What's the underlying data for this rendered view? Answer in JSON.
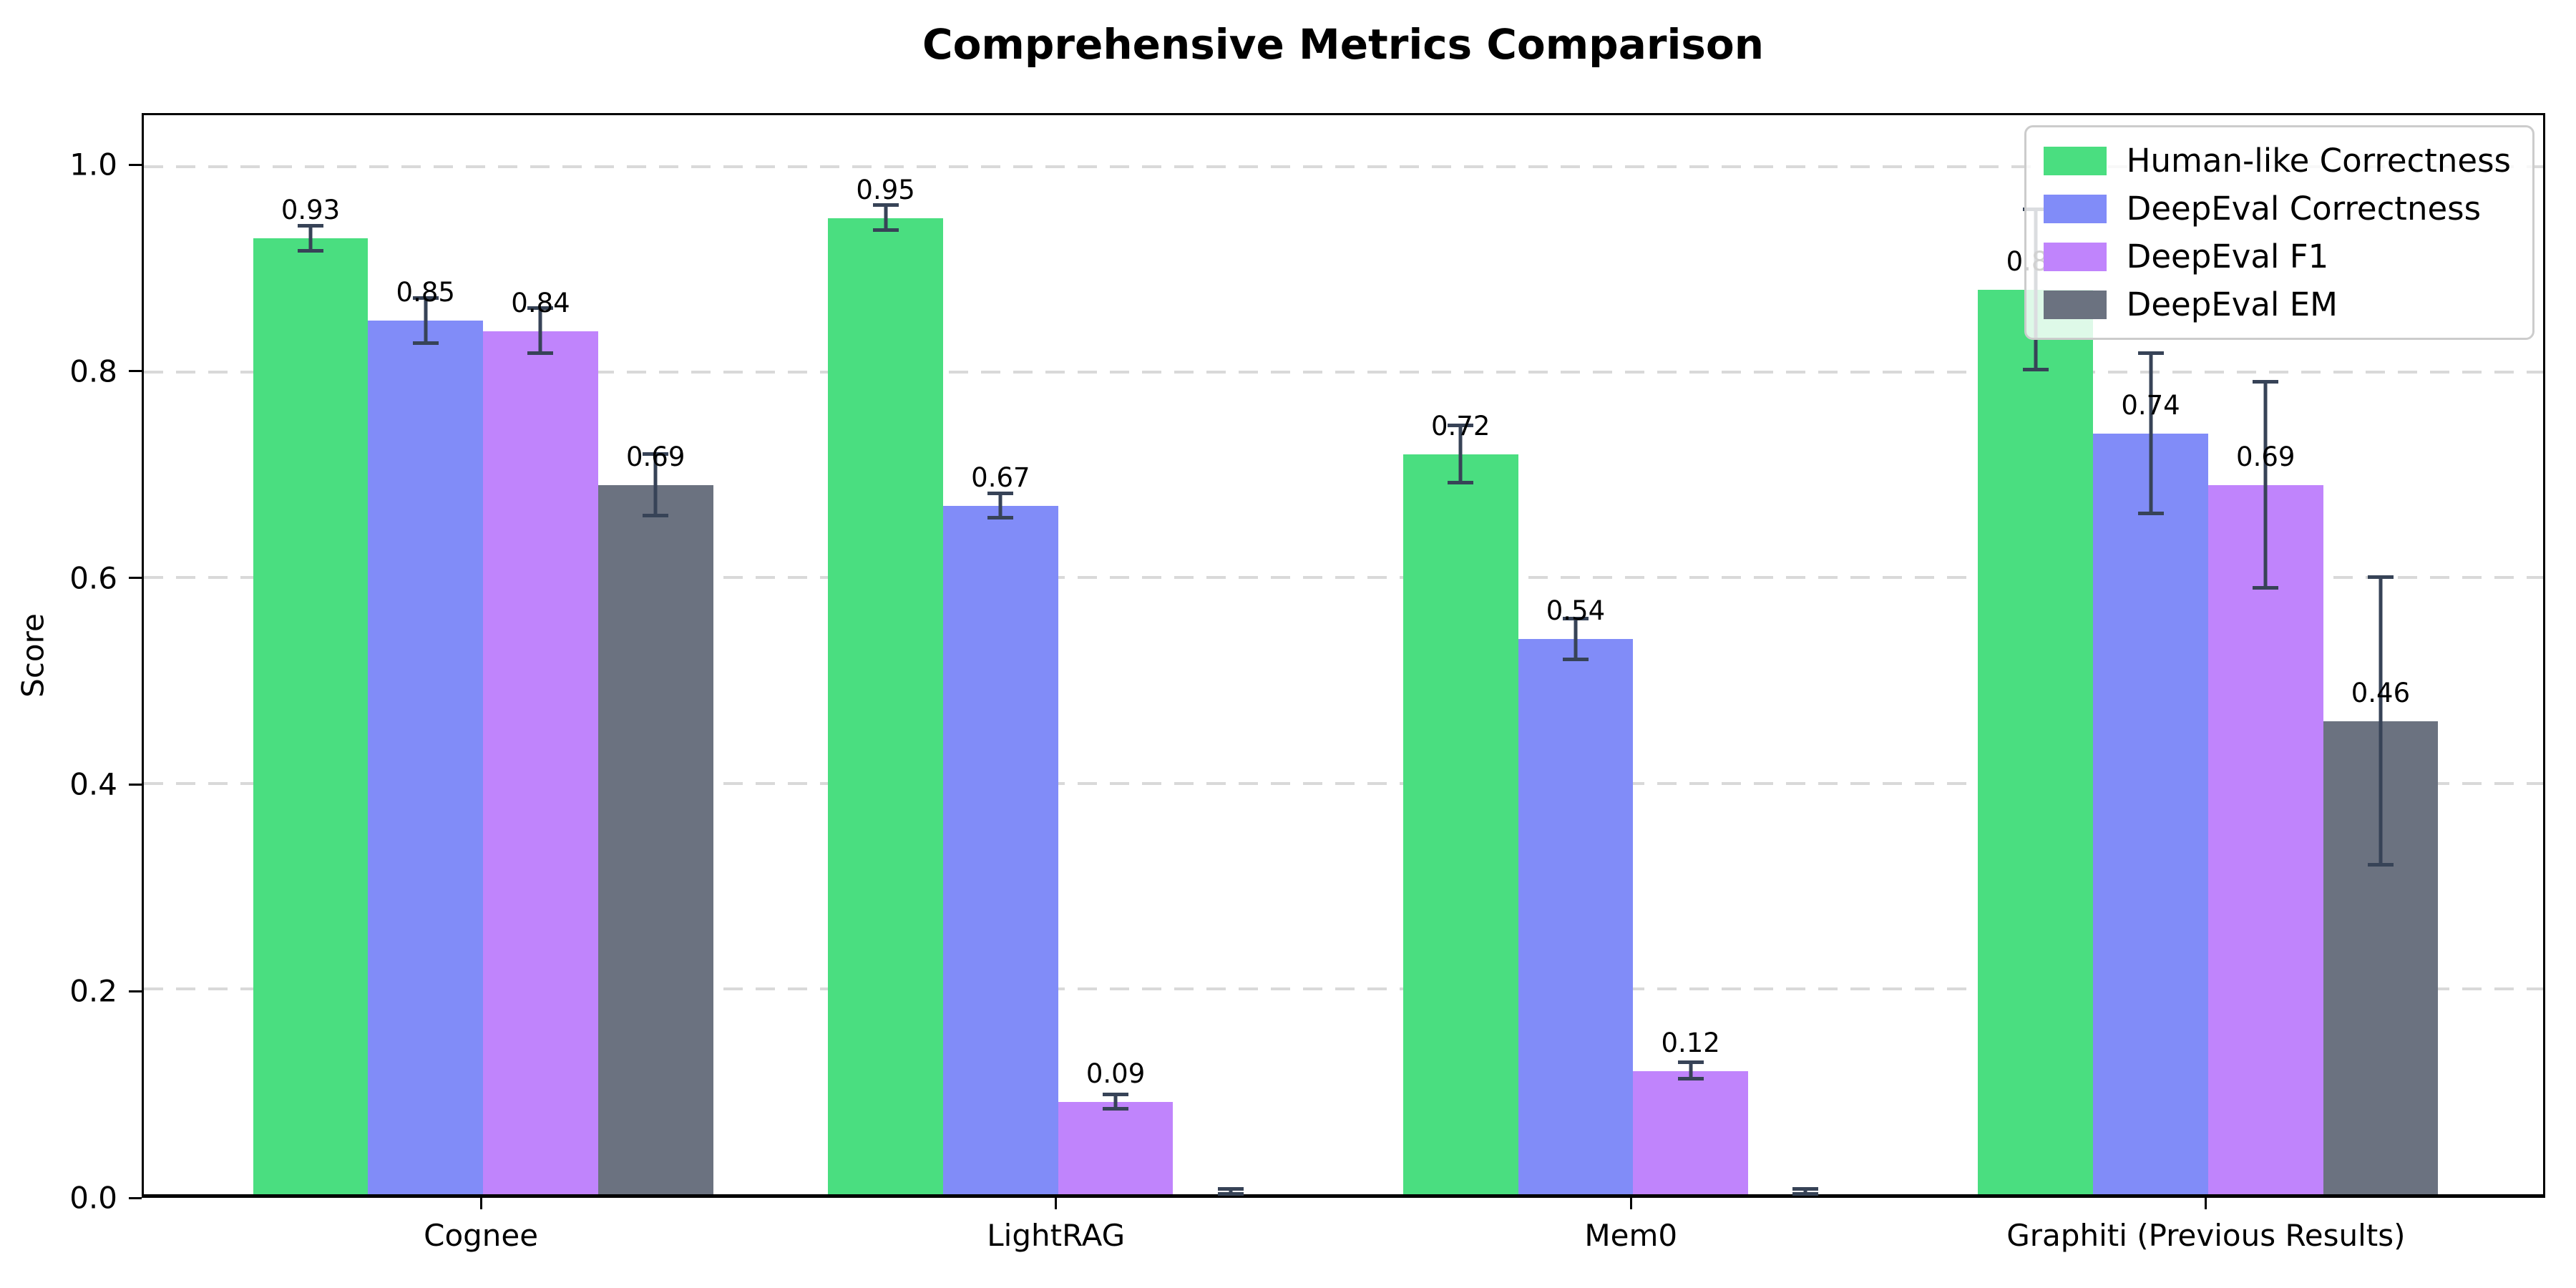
{
  "chart_data": {
    "type": "bar",
    "title": "Comprehensive Metrics Comparison",
    "xlabel": "",
    "ylabel": "Score",
    "categories": [
      "Cognee",
      "LightRAG",
      "Mem0",
      "Graphiti (Previous Results)"
    ],
    "series": [
      {
        "name": "Human-like Correctness",
        "color": "#4ade80",
        "values": [
          0.93,
          0.95,
          0.72,
          0.88
        ],
        "errors": [
          0.012,
          0.012,
          0.028,
          0.078
        ],
        "labels": [
          "0.93",
          "0.95",
          "0.72",
          "0.88"
        ]
      },
      {
        "name": "DeepEval Correctness",
        "color": "#818cf8",
        "values": [
          0.85,
          0.67,
          0.54,
          0.74
        ],
        "errors": [
          0.022,
          0.012,
          0.02,
          0.078
        ],
        "labels": [
          "0.85",
          "0.67",
          "0.54",
          "0.74"
        ]
      },
      {
        "name": "DeepEval F1",
        "color": "#c084fc",
        "values": [
          0.84,
          0.09,
          0.12,
          0.69
        ],
        "errors": [
          0.022,
          0.007,
          0.008,
          0.1
        ],
        "labels": [
          "0.84",
          "0.09",
          "0.12",
          "0.69"
        ]
      },
      {
        "name": "DeepEval EM",
        "color": "#6b7280",
        "values": [
          0.69,
          0.0,
          0.0,
          0.46
        ],
        "errors": [
          0.03,
          0.005,
          0.005,
          0.14
        ],
        "labels": [
          "0.69",
          null,
          null,
          "0.46"
        ]
      }
    ],
    "ytick_labels": [
      "0.0",
      "0.2",
      "0.4",
      "0.6",
      "0.8",
      "1.0"
    ],
    "ytick_values": [
      0.0,
      0.2,
      0.4,
      0.6,
      0.8,
      1.0
    ],
    "ylim": [
      0,
      1.05
    ],
    "grid": "horizontal-dashed",
    "legend_position": "upper right",
    "error_bar_color": "#374357"
  }
}
